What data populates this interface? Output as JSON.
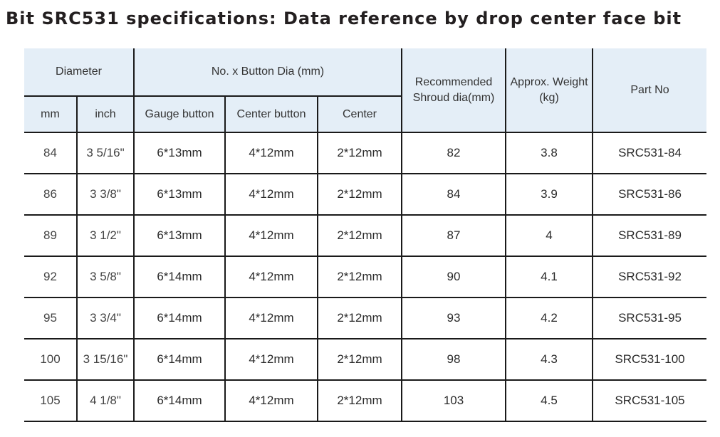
{
  "title": "Bit SRC531 specifications: Data reference by drop center face bit",
  "table": {
    "headers": {
      "diameter": "Diameter",
      "button_group": "No. x Button Dia (mm)",
      "shroud": "Recommended Shroud dia(mm)",
      "weight": "Approx. Weight (kg)",
      "part_no": "Part No",
      "mm": "mm",
      "inch": "inch",
      "gauge_button": "Gauge button",
      "center_button": "Center button",
      "center": "Center"
    },
    "rows": [
      {
        "mm": "84",
        "inch": "3 5/16\"",
        "gauge": "6*13mm",
        "center_button": "4*12mm",
        "center": "2*12mm",
        "shroud": "82",
        "weight": "3.8",
        "part_no": "SRC531-84"
      },
      {
        "mm": "86",
        "inch": "3 3/8\"",
        "gauge": "6*13mm",
        "center_button": "4*12mm",
        "center": "2*12mm",
        "shroud": "84",
        "weight": "3.9",
        "part_no": "SRC531-86"
      },
      {
        "mm": "89",
        "inch": "3 1/2\"",
        "gauge": "6*13mm",
        "center_button": "4*12mm",
        "center": "2*12mm",
        "shroud": "87",
        "weight": "4",
        "part_no": "SRC531-89"
      },
      {
        "mm": "92",
        "inch": "3 5/8\"",
        "gauge": "6*14mm",
        "center_button": "4*12mm",
        "center": "2*12mm",
        "shroud": "90",
        "weight": "4.1",
        "part_no": "SRC531-92"
      },
      {
        "mm": "95",
        "inch": "3 3/4\"",
        "gauge": "6*14mm",
        "center_button": "4*12mm",
        "center": "2*12mm",
        "shroud": "93",
        "weight": "4.2",
        "part_no": "SRC531-95"
      },
      {
        "mm": "100",
        "inch": "3 15/16\"",
        "gauge": "6*14mm",
        "center_button": "4*12mm",
        "center": "2*12mm",
        "shroud": "98",
        "weight": "4.3",
        "part_no": "SRC531-100"
      },
      {
        "mm": "105",
        "inch": "4 1/8\"",
        "gauge": "6*14mm",
        "center_button": "4*12mm",
        "center": "2*12mm",
        "shroud": "103",
        "weight": "4.5",
        "part_no": "SRC531-105"
      }
    ]
  }
}
